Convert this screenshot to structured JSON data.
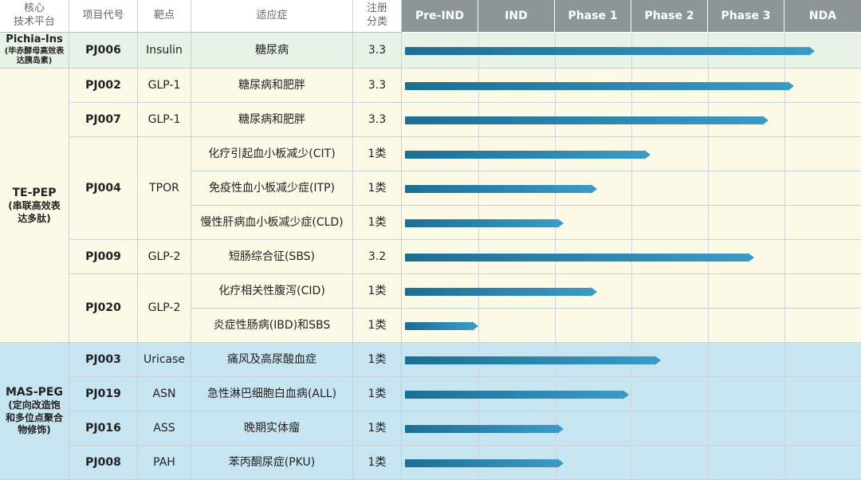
{
  "headers": {
    "platform": [
      "核心",
      "技术平台"
    ],
    "code": "项目代号",
    "target": "靶点",
    "indication": "适应症",
    "registration": [
      "注册",
      "分类"
    ],
    "phases": [
      "Pre-IND",
      "IND",
      "Phase 1",
      "Phase 2",
      "Phase 3",
      "NDA"
    ]
  },
  "platforms": [
    {
      "id": "pichia",
      "name": "Pichia-Ins",
      "sub": "(毕赤酵母高效表达胰岛素)",
      "color": "#e8f3e8"
    },
    {
      "id": "tepep",
      "name": "TE-PEP",
      "sub": "(串联高效表达多肽)",
      "color": "#fdf9e7"
    },
    {
      "id": "maspeg",
      "name": "MAS-PEG",
      "sub": "(定向改造饱和多位点聚合物修饰)",
      "color": "#c7e5f1"
    }
  ],
  "projects": [
    {
      "code": "PJ006",
      "target": "Insulin",
      "platform": "pichia"
    },
    {
      "code": "PJ002",
      "target": "GLP-1",
      "platform": "tepep"
    },
    {
      "code": "PJ007",
      "target": "GLP-1",
      "platform": "tepep"
    },
    {
      "code": "PJ004",
      "target": "TPOR",
      "platform": "tepep"
    },
    {
      "code": "PJ009",
      "target": "GLP-2",
      "platform": "tepep"
    },
    {
      "code": "PJ020",
      "target": "GLP-2",
      "platform": "tepep"
    },
    {
      "code": "PJ003",
      "target": "Uricase",
      "platform": "maspeg"
    },
    {
      "code": "PJ019",
      "target": "ASN",
      "platform": "maspeg"
    },
    {
      "code": "PJ016",
      "target": "ASS",
      "platform": "maspeg"
    },
    {
      "code": "PJ008",
      "target": "PAH",
      "platform": "maspeg"
    }
  ],
  "chart_data": {
    "type": "bar",
    "orientation": "horizontal",
    "x_categories": [
      "Pre-IND",
      "IND",
      "Phase 1",
      "Phase 2",
      "Phase 3",
      "NDA"
    ],
    "rows": [
      {
        "project": "PJ006",
        "indication": "糖尿病",
        "registration": "3.3",
        "progress_phases": 5.4
      },
      {
        "project": "PJ002",
        "indication": "糖尿病和肥胖",
        "registration": "3.3",
        "progress_phases": 5.12
      },
      {
        "project": "PJ007",
        "indication": "糖尿病和肥胖",
        "registration": "3.3",
        "progress_phases": 4.79
      },
      {
        "project": "PJ004",
        "indication": "化疗引起血小板减少(CIT)",
        "registration": "1类",
        "progress_phases": 3.25
      },
      {
        "project": "PJ004",
        "indication": "免疫性血小板减少症(ITP)",
        "registration": "1类",
        "progress_phases": 2.55
      },
      {
        "project": "PJ004",
        "indication": "慢性肝病血小板减少症(CLD)",
        "registration": "1类",
        "progress_phases": 2.11
      },
      {
        "project": "PJ009",
        "indication": "短肠综合征(SBS)",
        "registration": "3.2",
        "progress_phases": 4.6
      },
      {
        "project": "PJ020",
        "indication": "化疗相关性腹泻(CID)",
        "registration": "1类",
        "progress_phases": 2.55
      },
      {
        "project": "PJ020",
        "indication": "炎症性肠病(IBD)和SBS",
        "registration": "1类",
        "progress_phases": 1.0
      },
      {
        "project": "PJ003",
        "indication": "痛风及高尿酸血症",
        "registration": "1类",
        "progress_phases": 3.39
      },
      {
        "project": "PJ019",
        "indication": "急性淋巴细胞白血病(ALL)",
        "registration": "1类",
        "progress_phases": 2.97
      },
      {
        "project": "PJ016",
        "indication": "晚期实体瘤",
        "registration": "1类",
        "progress_phases": 2.11
      },
      {
        "project": "PJ008",
        "indication": "苯丙酮尿症(PKU)",
        "registration": "1类",
        "progress_phases": 2.11
      }
    ]
  }
}
